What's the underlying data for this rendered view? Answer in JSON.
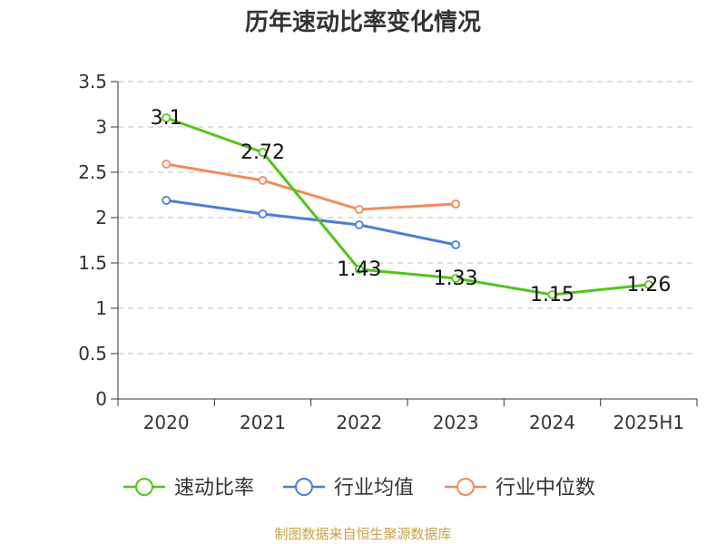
{
  "chart_data": {
    "type": "line",
    "title": "历年速动比率变化情况",
    "categories": [
      "2020",
      "2021",
      "2022",
      "2023",
      "2024",
      "2025H1"
    ],
    "ylim": [
      0,
      3.5
    ],
    "yticks": [
      "0",
      "0.5",
      "1",
      "1.5",
      "2",
      "2.5",
      "3",
      "3.5"
    ],
    "grid": true,
    "legend_position": "bottom",
    "series": [
      {
        "name": "速动比率",
        "color": "#52c41a",
        "values": [
          3.1,
          2.72,
          1.43,
          1.33,
          1.15,
          1.26
        ],
        "labels": [
          "3.1",
          "2.72",
          "1.43",
          "1.33",
          "1.15",
          "1.26"
        ]
      },
      {
        "name": "行业均值",
        "color": "#4a7fd9",
        "values": [
          2.19,
          2.04,
          1.92,
          1.7,
          null,
          null
        ]
      },
      {
        "name": "行业中位数",
        "color": "#f5895a",
        "values": [
          2.59,
          2.41,
          2.09,
          2.15,
          null,
          null
        ]
      }
    ]
  },
  "source_text": "制图数据来自恒生聚源数据库"
}
